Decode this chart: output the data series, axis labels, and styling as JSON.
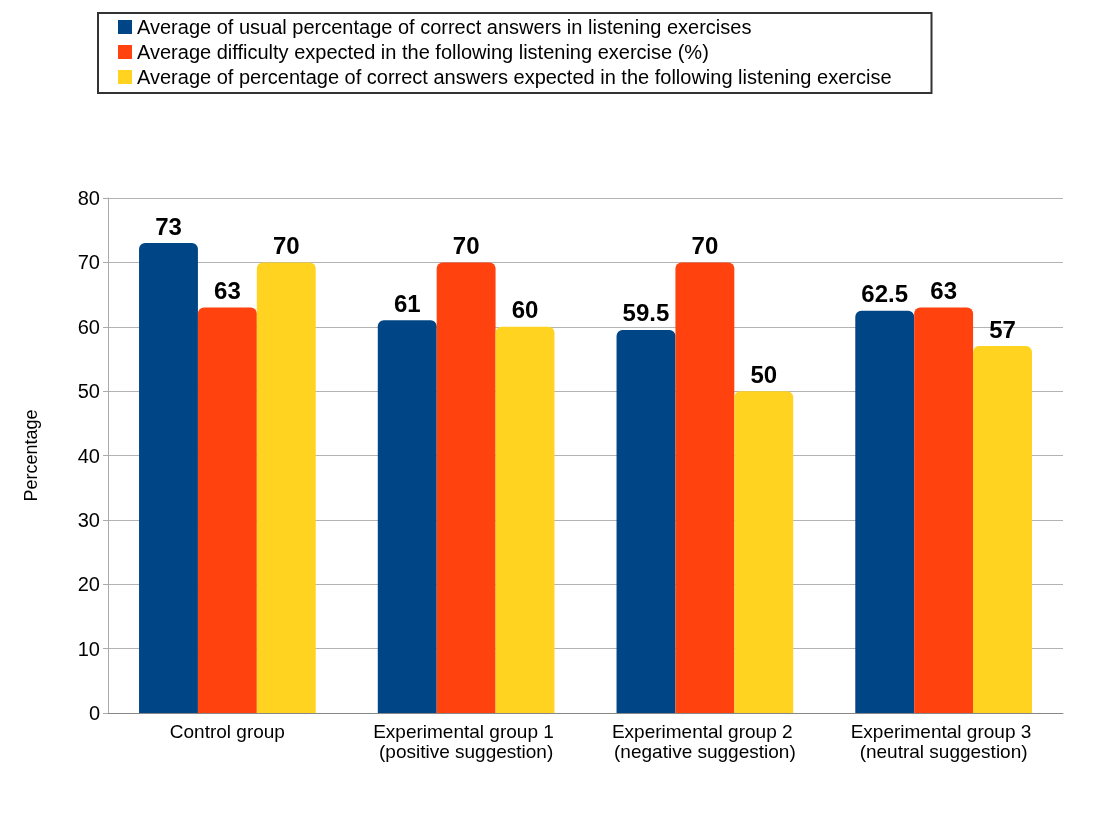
{
  "chart_data": {
    "type": "bar",
    "ylabel": "Percentage",
    "categories": [
      "Control group",
      "Experimental group 1 (positive suggestion)",
      "Experimental group 2 (negative suggestion)",
      "Experimental group 3 (neutral suggestion)"
    ],
    "series": [
      {
        "name": "Average of usual percentage of correct answers in listening exercises",
        "color": "#004586",
        "values": [
          73,
          61,
          59.5,
          62.5
        ]
      },
      {
        "name": "Average difficulty expected in the following listening exercise (%)",
        "color": "#ff420e",
        "values": [
          63,
          70,
          70,
          63
        ]
      },
      {
        "name": "Average of percentage of correct answers expected in the following listening exercise",
        "color": "#ffd320",
        "values": [
          70,
          60,
          50,
          57
        ]
      }
    ],
    "ylim": [
      0,
      80
    ],
    "yticks": [
      0,
      10,
      20,
      30,
      40,
      50,
      60,
      70,
      80
    ],
    "grid": "y",
    "legend": "top",
    "data_labels": true
  }
}
